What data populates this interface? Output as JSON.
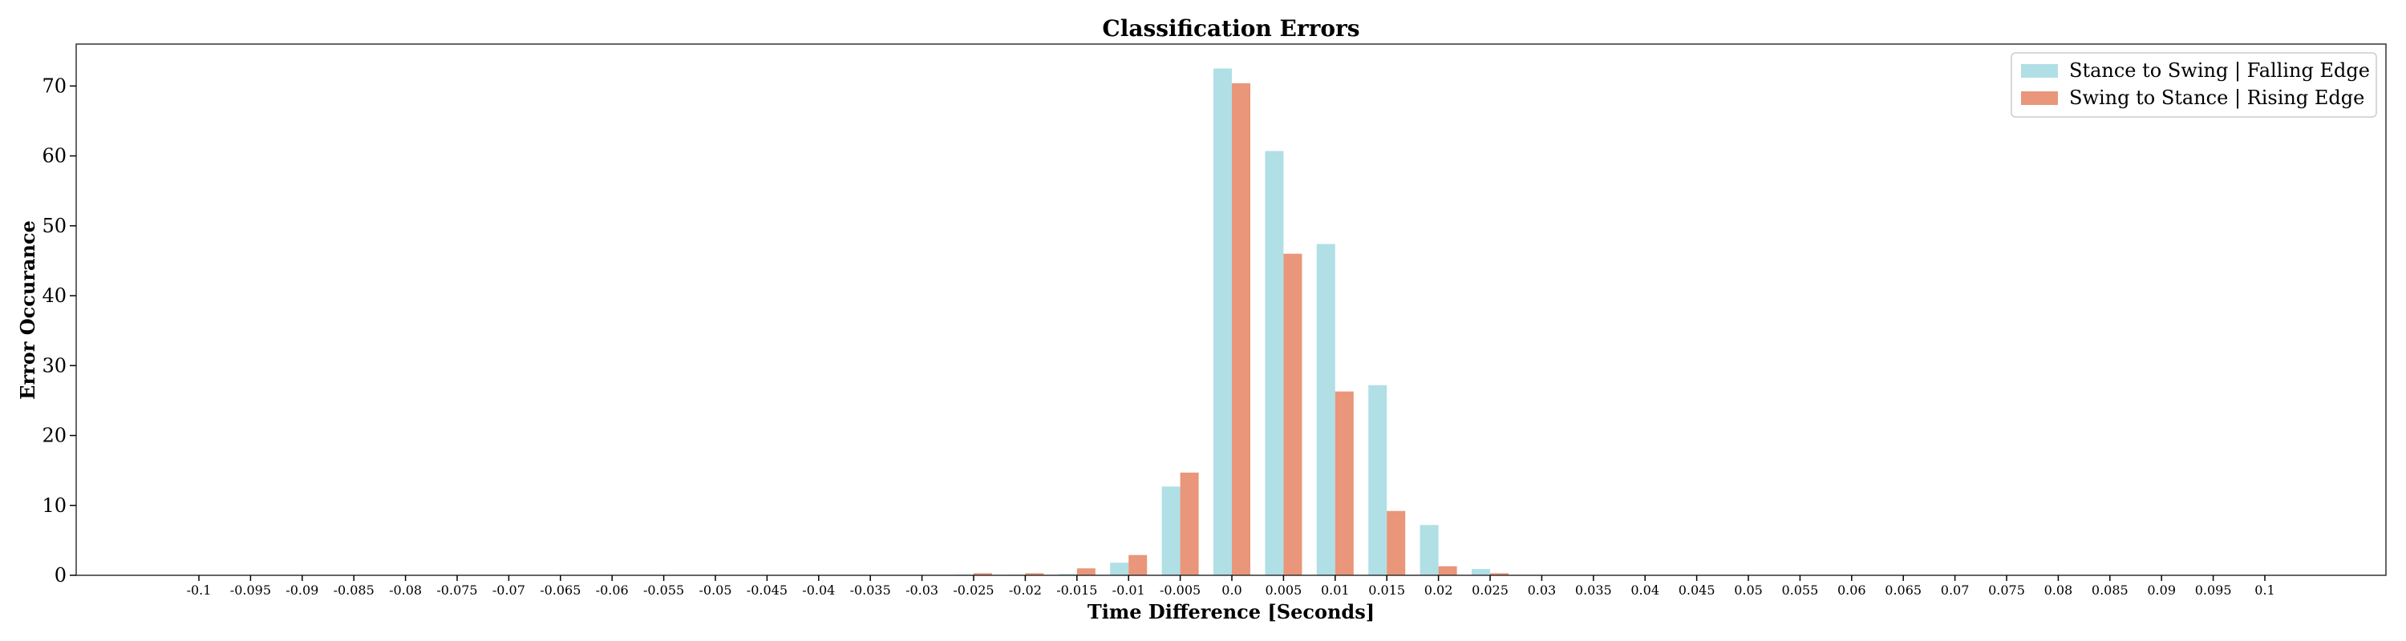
{
  "chart_data": {
    "type": "bar",
    "title": "Classification Errors",
    "xlabel": "Time Difference [Seconds]",
    "ylabel": "Error Occurance",
    "ylim": [
      0,
      76
    ],
    "yticks": [
      0,
      10,
      20,
      30,
      40,
      50,
      60,
      70
    ],
    "grid": false,
    "legend_position": "top-right",
    "categories": [
      "-0.1",
      "-0.095",
      "-0.09",
      "-0.085",
      "-0.08",
      "-0.075",
      "-0.07",
      "-0.065",
      "-0.06",
      "-0.055",
      "-0.05",
      "-0.045",
      "-0.04",
      "-0.035",
      "-0.03",
      "-0.025",
      "-0.02",
      "-0.015",
      "-0.01",
      "-0.005",
      "0.0",
      "0.005",
      "0.01",
      "0.015",
      "0.02",
      "0.025",
      "0.03",
      "0.035",
      "0.04",
      "0.045",
      "0.05",
      "0.055",
      "0.06",
      "0.065",
      "0.07",
      "0.075",
      "0.08",
      "0.085",
      "0.09",
      "0.095",
      "0.1"
    ],
    "series": [
      {
        "name": "Stance to Swing | Falling Edge",
        "color": "#b0dfe5",
        "values": [
          0,
          0,
          0,
          0,
          0,
          0,
          0,
          0,
          0,
          0,
          0,
          0,
          0,
          0,
          0,
          0.1,
          0.1,
          0.2,
          1.8,
          12.7,
          72.5,
          60.7,
          47.4,
          27.2,
          7.2,
          0.9,
          0,
          0,
          0,
          0,
          0,
          0,
          0,
          0,
          0,
          0,
          0,
          0,
          0,
          0,
          0
        ]
      },
      {
        "name": "Swing to Stance | Rising Edge",
        "color": "#e9967a",
        "values": [
          0,
          0,
          0,
          0,
          0,
          0,
          0,
          0,
          0,
          0,
          0,
          0,
          0,
          0,
          0,
          0.3,
          0.3,
          1.0,
          2.9,
          14.7,
          70.4,
          46.0,
          26.3,
          9.2,
          1.3,
          0.3,
          0,
          0,
          0,
          0,
          0,
          0,
          0,
          0,
          0,
          0,
          0,
          0,
          0,
          0,
          0
        ]
      }
    ]
  }
}
